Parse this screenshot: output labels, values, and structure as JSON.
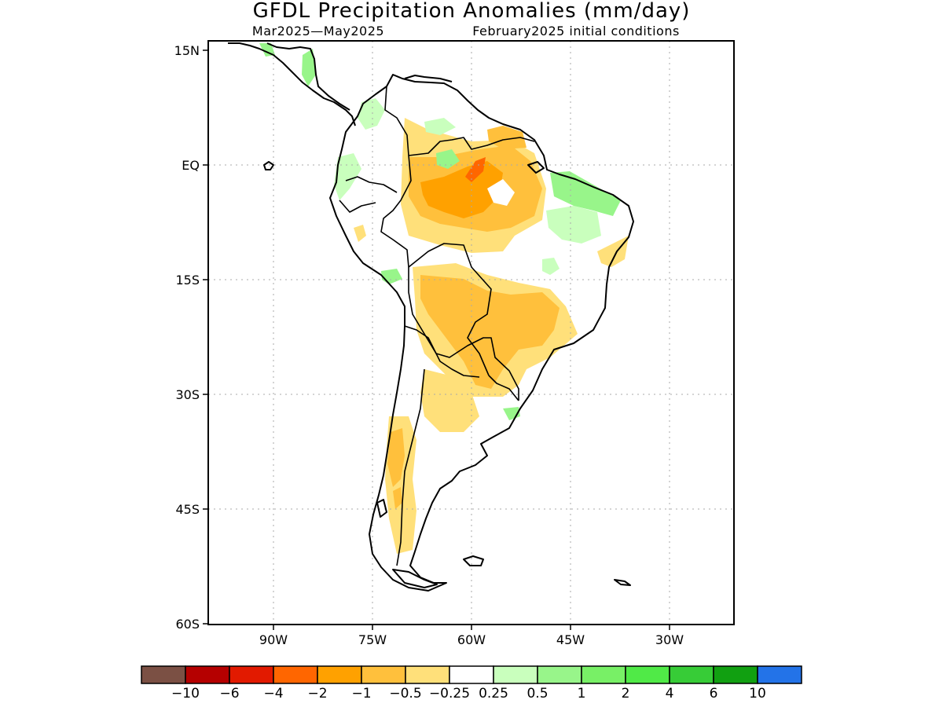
{
  "title": "GFDL Precipitation Anomalies (mm/day)",
  "subtitle_left": "Mar2025—May2025",
  "subtitle_right": "February2025 initial conditions",
  "lat_labels": [
    "15N",
    "EQ",
    "15S",
    "30S",
    "45S",
    "60S"
  ],
  "lon_labels": [
    "90W",
    "75W",
    "60W",
    "45W",
    "30W"
  ],
  "colorbar": {
    "colors": [
      "#7b5044",
      "#b50000",
      "#e21a00",
      "#ff6600",
      "#ffa100",
      "#ffc03c",
      "#ffe07a",
      "#ffffff",
      "#c9ffbd",
      "#98f58a",
      "#78f066",
      "#50ea47",
      "#37cc37",
      "#11a011",
      "#2373e8"
    ],
    "labels": [
      "−10",
      "−6",
      "−4",
      "−2",
      "−1",
      "−0.5",
      "−0.25",
      "0.25",
      "0.5",
      "1",
      "2",
      "4",
      "6",
      "10"
    ]
  }
}
